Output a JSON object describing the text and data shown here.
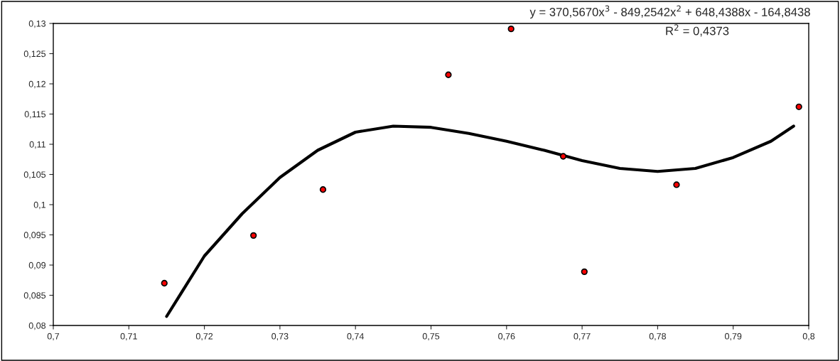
{
  "chart_data": {
    "type": "scatter",
    "series": [
      {
        "color": "#ff0000",
        "marker": "circle",
        "x": [
          0.7147,
          0.7265,
          0.7357,
          0.7523,
          0.7606,
          0.7675,
          0.7703,
          0.7825,
          0.7987
        ],
        "values": [
          0.087,
          0.0949,
          0.1025,
          0.1215,
          0.1291,
          0.108,
          0.0889,
          0.1033,
          0.1162
        ]
      },
      {
        "type": "line",
        "color": "#000000",
        "line_style": "solid",
        "x": [
          0.715,
          0.72,
          0.725,
          0.73,
          0.735,
          0.74,
          0.745,
          0.75,
          0.755,
          0.76,
          0.765,
          0.77,
          0.775,
          0.78,
          0.785,
          0.79,
          0.795,
          0.798
        ],
        "values": [
          0.0815,
          0.0915,
          0.0985,
          0.1045,
          0.109,
          0.112,
          0.113,
          0.1128,
          0.1118,
          0.1105,
          0.109,
          0.1073,
          0.106,
          0.1055,
          0.106,
          0.1078,
          0.1105,
          0.113
        ]
      }
    ],
    "xlim": [
      0.7,
      0.8
    ],
    "xticks": [
      {
        "value": 0.7,
        "label": "0,7"
      },
      {
        "value": 0.71,
        "label": "0,71"
      },
      {
        "value": 0.72,
        "label": "0,72"
      },
      {
        "value": 0.73,
        "label": "0,73"
      },
      {
        "value": 0.74,
        "label": "0,74"
      },
      {
        "value": 0.75,
        "label": "0,75"
      },
      {
        "value": 0.76,
        "label": "0,76"
      },
      {
        "value": 0.77,
        "label": "0,77"
      },
      {
        "value": 0.78,
        "label": "0,78"
      },
      {
        "value": 0.79,
        "label": "0,79"
      },
      {
        "value": 0.8,
        "label": "0,8"
      }
    ],
    "ylim": [
      0.08,
      0.13
    ],
    "yticks": [
      {
        "value": 0.08,
        "label": "0,08"
      },
      {
        "value": 0.085,
        "label": "0,085"
      },
      {
        "value": 0.09,
        "label": "0,09"
      },
      {
        "value": 0.095,
        "label": "0,095"
      },
      {
        "value": 0.1,
        "label": "0,1"
      },
      {
        "value": 0.105,
        "label": "0,105"
      },
      {
        "value": 0.11,
        "label": "0,11"
      },
      {
        "value": 0.115,
        "label": "0,115"
      },
      {
        "value": 0.12,
        "label": "0,12"
      },
      {
        "value": 0.125,
        "label": "0,125"
      },
      {
        "value": 0.13,
        "label": "0,13"
      }
    ],
    "grid": false,
    "annotations": [
      "y = 370,5670x$^{3}$ - 849,2542x$^{2}$ + 648,4388x - 164,8438",
      "R$^{2}$ = 0,4373"
    ]
  }
}
